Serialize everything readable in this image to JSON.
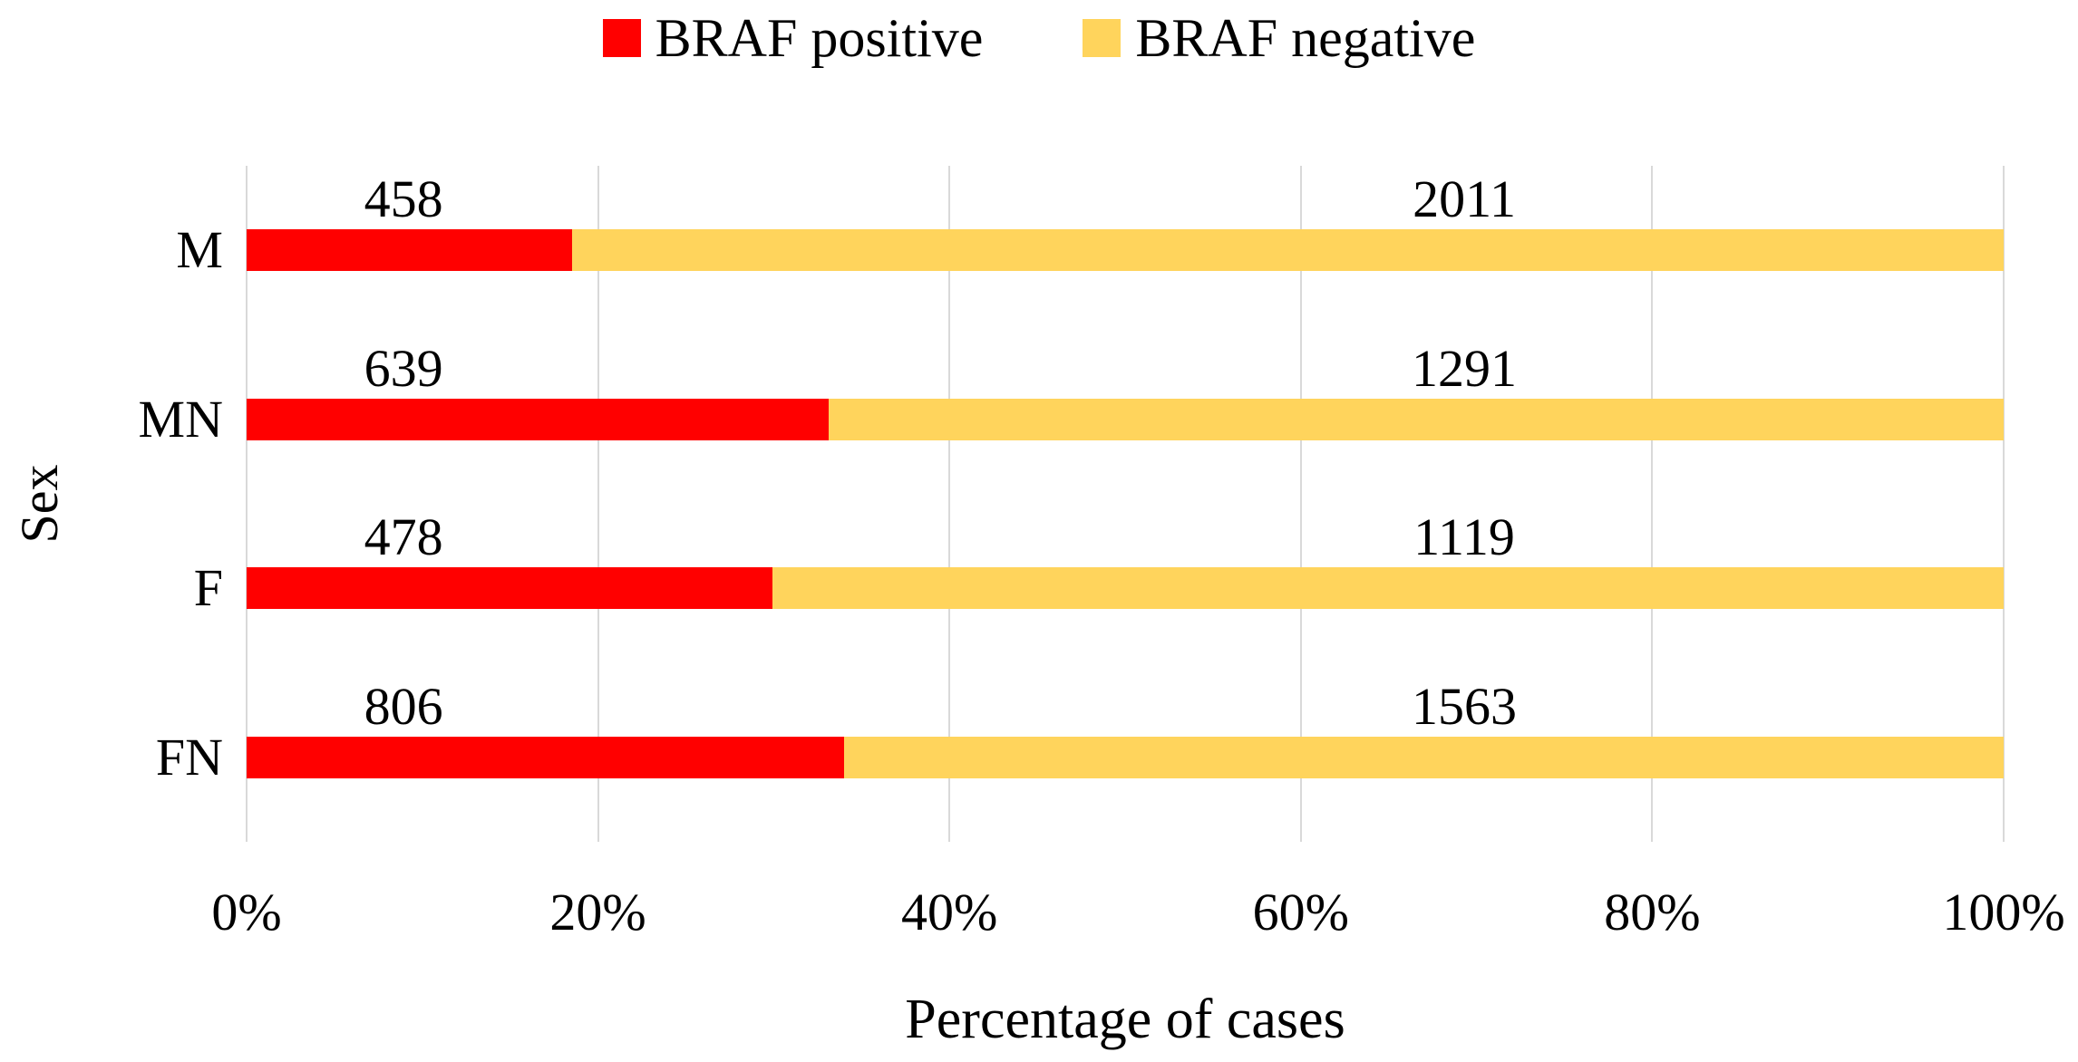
{
  "chart_data": {
    "type": "bar",
    "orientation": "horizontal",
    "stacked": true,
    "normalized_to_100pct": true,
    "title": "",
    "xlabel": "Percentage of cases",
    "ylabel": "Sex",
    "categories": [
      "M",
      "MN",
      "F",
      "FN"
    ],
    "series": [
      {
        "name": "BRAF positive",
        "color": "#FF0000",
        "values": [
          458,
          639,
          478,
          806
        ]
      },
      {
        "name": "BRAF negative",
        "color": "#FFD45C",
        "values": [
          2011,
          1291,
          1119,
          1563
        ]
      }
    ],
    "row_positive_pct": [
      18.55,
      33.11,
      29.93,
      34.02
    ],
    "x_ticks": [
      "0%",
      "20%",
      "40%",
      "60%",
      "80%",
      "100%"
    ],
    "xlim": [
      0,
      100
    ],
    "grid": "vertical",
    "gridline_color": "#D9D9D9",
    "legend_position": "top",
    "text_color": "#000000"
  }
}
